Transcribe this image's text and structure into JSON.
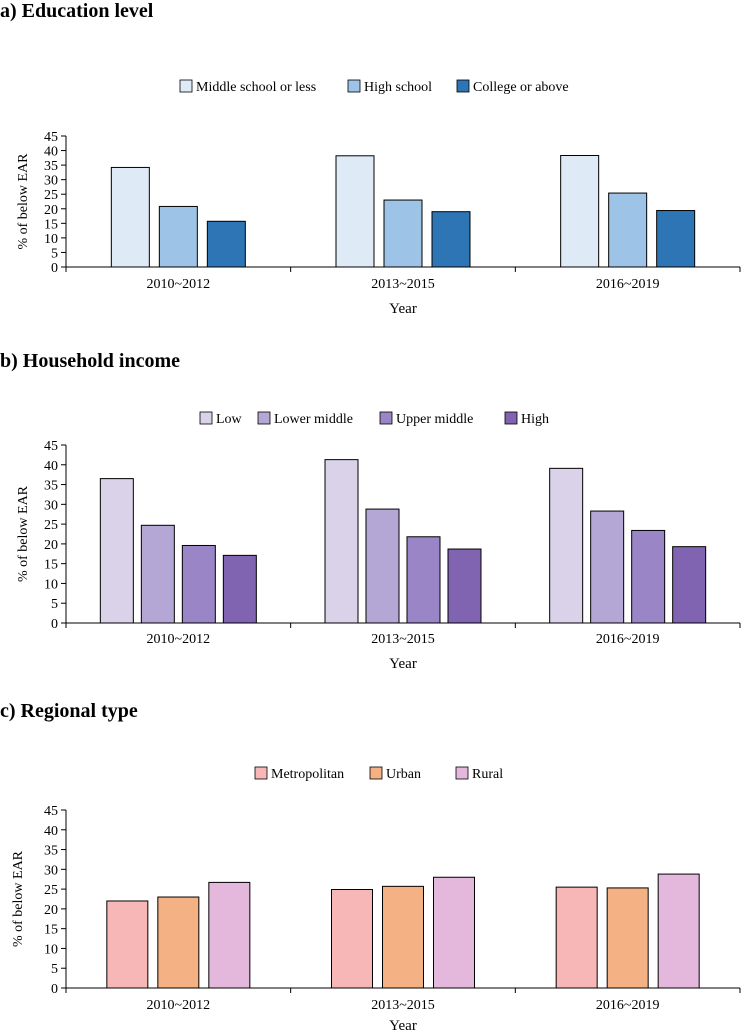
{
  "chart_data": [
    {
      "type": "bar",
      "title": "a) Education level",
      "xlabel": "Year",
      "ylabel": "% of below EAR",
      "ylim": [
        0,
        45
      ],
      "yticks": [
        0,
        5,
        10,
        15,
        20,
        25,
        30,
        35,
        40,
        45
      ],
      "legend_position": "top",
      "categories": [
        "2010~2012",
        "2013~2015",
        "2016~2019"
      ],
      "series": [
        {
          "name": "Middle school or less",
          "color": "#deebf7",
          "values": [
            34.2,
            38.2,
            38.3
          ]
        },
        {
          "name": "High school",
          "color": "#9dc3e6",
          "values": [
            20.8,
            23.0,
            25.4
          ]
        },
        {
          "name": "College or above",
          "color": "#2e75b6",
          "values": [
            15.7,
            19.0,
            19.4
          ]
        }
      ]
    },
    {
      "type": "bar",
      "title": "b) Household income",
      "xlabel": "Year",
      "ylabel": "% of below EAR",
      "ylim": [
        0,
        45
      ],
      "yticks": [
        0,
        5,
        10,
        15,
        20,
        25,
        30,
        35,
        40,
        45
      ],
      "legend_position": "top",
      "categories": [
        "2010~2012",
        "2013~2015",
        "2016~2019"
      ],
      "series": [
        {
          "name": "Low",
          "color": "#d9d2e9",
          "values": [
            36.5,
            41.3,
            39.1
          ]
        },
        {
          "name": "Lower middle",
          "color": "#b4a7d6",
          "values": [
            24.7,
            28.8,
            28.3
          ]
        },
        {
          "name": "Upper middle",
          "color": "#9a86c6",
          "values": [
            19.6,
            21.8,
            23.4
          ]
        },
        {
          "name": "High",
          "color": "#8064b2",
          "values": [
            17.1,
            18.7,
            19.3
          ]
        }
      ]
    },
    {
      "type": "bar",
      "title": "c) Regional type",
      "xlabel": "Year",
      "ylabel": "% of below EAR",
      "ylim": [
        0,
        45
      ],
      "yticks": [
        0,
        5,
        10,
        15,
        20,
        25,
        30,
        35,
        40,
        45
      ],
      "legend_position": "top",
      "categories": [
        "2010~2012",
        "2013~2015",
        "2016~2019"
      ],
      "series": [
        {
          "name": "Metropolitan",
          "color": "#f7b7b7",
          "values": [
            22.0,
            24.9,
            25.5
          ]
        },
        {
          "name": "Urban",
          "color": "#f4b183",
          "values": [
            23.0,
            25.7,
            25.3
          ]
        },
        {
          "name": "Rural",
          "color": "#e4b7dc",
          "values": [
            26.7,
            28.0,
            28.8
          ]
        }
      ]
    }
  ]
}
